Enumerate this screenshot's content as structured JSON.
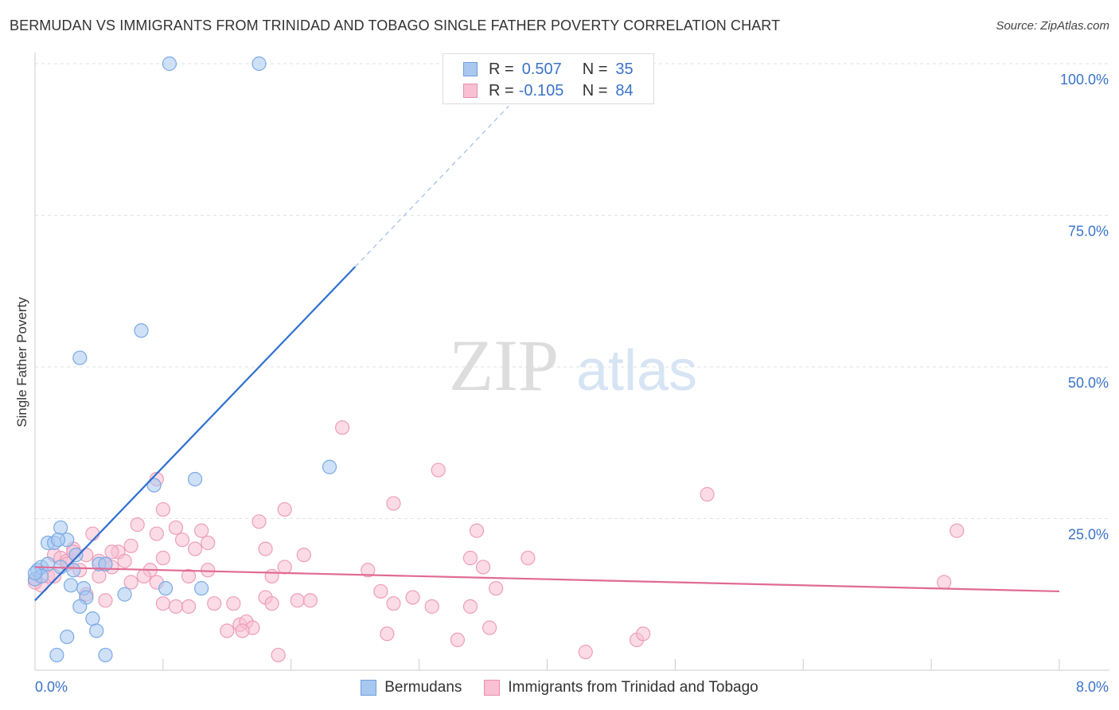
{
  "header": {
    "title": "BERMUDAN VS IMMIGRANTS FROM TRINIDAD AND TOBAGO SINGLE FATHER POVERTY CORRELATION CHART",
    "source": "Source: ZipAtlas.com"
  },
  "watermark": {
    "left": "ZIP",
    "right": "atlas"
  },
  "legend_stats": [
    {
      "r_label": "R =",
      "r_value": "0.507",
      "n_label": "N =",
      "n_value": "35",
      "color": "#a8c8f0",
      "border": "#6f9fdc"
    },
    {
      "r_label": "R =",
      "r_value": "-0.105",
      "n_label": "N =",
      "n_value": "84",
      "color": "#f8c0d2",
      "border": "#e890aa"
    }
  ],
  "chart_data": {
    "type": "scatter",
    "title": "BERMUDAN VS IMMIGRANTS FROM TRINIDAD AND TOBAGO SINGLE FATHER POVERTY CORRELATION CHART",
    "xlabel": "",
    "ylabel": "Single Father Poverty",
    "xlim": [
      0,
      8
    ],
    "ylim": [
      0,
      100
    ],
    "x_tick_labels": {
      "min": "0.0%",
      "max": "8.0%"
    },
    "y_ticks": [
      {
        "value": 25,
        "label": "25.0%"
      },
      {
        "value": 50,
        "label": "50.0%"
      },
      {
        "value": 75,
        "label": "75.0%"
      },
      {
        "value": 100,
        "label": "100.0%"
      }
    ],
    "grid": true,
    "series": [
      {
        "name": "Bermudans",
        "color": "#7aaae6",
        "fill": "#a8c8f0",
        "line_color": "#2e6fd0",
        "trend": {
          "x0": 0.0,
          "y0": 11.5,
          "x1": 2.5,
          "y1": 66.5,
          "dash_x1": 3.7,
          "dash_y1": 93.0
        },
        "points": [
          [
            1.05,
            100
          ],
          [
            1.75,
            100
          ],
          [
            0.83,
            56
          ],
          [
            0.35,
            51.5
          ],
          [
            2.3,
            33.5
          ],
          [
            1.25,
            31.5
          ],
          [
            0.93,
            30.5
          ],
          [
            0.2,
            23.5
          ],
          [
            0.1,
            21
          ],
          [
            0.15,
            21
          ],
          [
            0.25,
            21.5
          ],
          [
            0.18,
            21.5
          ],
          [
            0.02,
            16.5
          ],
          [
            0.05,
            17
          ],
          [
            0.1,
            17.5
          ],
          [
            0.2,
            17
          ],
          [
            0.3,
            16.5
          ],
          [
            0.5,
            17.5
          ],
          [
            0.55,
            17.5
          ],
          [
            0.32,
            19
          ],
          [
            0.0,
            15
          ],
          [
            0.05,
            15.5
          ],
          [
            0.28,
            14
          ],
          [
            0.38,
            13.5
          ],
          [
            0.4,
            12
          ],
          [
            0.7,
            12.5
          ],
          [
            1.02,
            13.5
          ],
          [
            1.3,
            13.5
          ],
          [
            0.35,
            10.5
          ],
          [
            0.45,
            8.5
          ],
          [
            0.48,
            6.5
          ],
          [
            0.25,
            5.5
          ],
          [
            0.17,
            2.5
          ],
          [
            0.55,
            2.5
          ],
          [
            0.0,
            16
          ]
        ]
      },
      {
        "name": "Immigrants from Trinidad and Tobago",
        "color": "#ee9db8",
        "fill": "#f8c0d2",
        "line_color": "#e06a94",
        "trend": {
          "x0": 0.0,
          "y0": 17.0,
          "x1": 8.0,
          "y1": 13.0
        },
        "points": [
          [
            2.4,
            40
          ],
          [
            3.15,
            33
          ],
          [
            0.95,
            31.5
          ],
          [
            5.25,
            29
          ],
          [
            2.8,
            27.5
          ],
          [
            1.0,
            26.5
          ],
          [
            1.95,
            26.5
          ],
          [
            7.2,
            23
          ],
          [
            0.8,
            24
          ],
          [
            1.1,
            23.5
          ],
          [
            1.75,
            24.5
          ],
          [
            3.45,
            23
          ],
          [
            1.3,
            23
          ],
          [
            0.95,
            22.5
          ],
          [
            0.45,
            22.5
          ],
          [
            1.15,
            21.5
          ],
          [
            1.35,
            21
          ],
          [
            0.75,
            20.5
          ],
          [
            0.65,
            19.5
          ],
          [
            0.6,
            19.5
          ],
          [
            1.25,
            20
          ],
          [
            1.8,
            20
          ],
          [
            0.3,
            20
          ],
          [
            0.4,
            19
          ],
          [
            0.15,
            19
          ],
          [
            0.2,
            18.5
          ],
          [
            0.25,
            18
          ],
          [
            0.3,
            19.5
          ],
          [
            0.5,
            18
          ],
          [
            0.55,
            17.5
          ],
          [
            0.7,
            18
          ],
          [
            1.0,
            18.5
          ],
          [
            2.1,
            19
          ],
          [
            3.4,
            18.5
          ],
          [
            3.85,
            18.5
          ],
          [
            1.35,
            16.5
          ],
          [
            0.9,
            16.5
          ],
          [
            0.85,
            15.5
          ],
          [
            1.2,
            15.5
          ],
          [
            1.95,
            17
          ],
          [
            2.6,
            16.5
          ],
          [
            3.5,
            17
          ],
          [
            0.1,
            15.5
          ],
          [
            0.05,
            14
          ],
          [
            0.0,
            15
          ],
          [
            0.15,
            15.5
          ],
          [
            0.35,
            16.5
          ],
          [
            0.5,
            15.5
          ],
          [
            0.75,
            14.5
          ],
          [
            1.85,
            15.5
          ],
          [
            2.7,
            13
          ],
          [
            3.6,
            13.5
          ],
          [
            0.4,
            12.5
          ],
          [
            0.55,
            11.5
          ],
          [
            1.0,
            11
          ],
          [
            1.1,
            10.5
          ],
          [
            1.2,
            10.5
          ],
          [
            1.4,
            11
          ],
          [
            1.55,
            11
          ],
          [
            1.8,
            12
          ],
          [
            1.85,
            11
          ],
          [
            2.05,
            11.5
          ],
          [
            2.8,
            11
          ],
          [
            2.95,
            12
          ],
          [
            3.1,
            10.5
          ],
          [
            3.4,
            10.5
          ],
          [
            1.6,
            7.5
          ],
          [
            1.65,
            8
          ],
          [
            1.7,
            7
          ],
          [
            1.5,
            6.5
          ],
          [
            1.62,
            6.5
          ],
          [
            2.75,
            6
          ],
          [
            3.3,
            5
          ],
          [
            3.55,
            7
          ],
          [
            4.3,
            3
          ],
          [
            4.7,
            5
          ],
          [
            4.75,
            6
          ],
          [
            1.9,
            2.5
          ],
          [
            0.6,
            17
          ],
          [
            0.95,
            14.5
          ],
          [
            2.15,
            11.5
          ],
          [
            0.25,
            17.5
          ],
          [
            7.1,
            14.5
          ],
          [
            0.0,
            14.5
          ]
        ]
      }
    ]
  }
}
